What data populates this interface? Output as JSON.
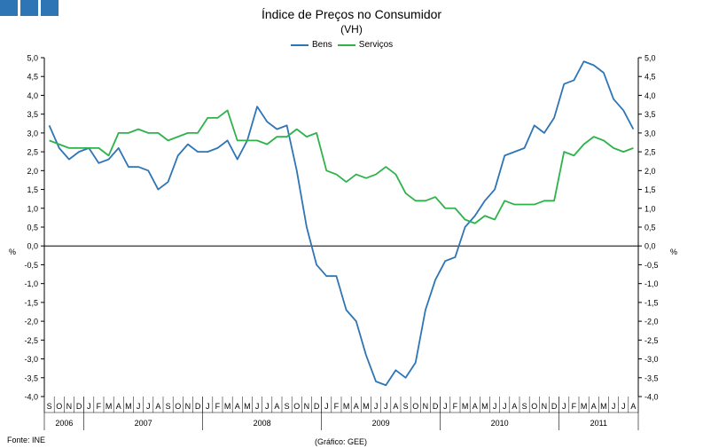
{
  "chart_data": {
    "type": "line",
    "title": "Índice de Preços no Consumidor",
    "subtitle": "(VH)",
    "ylabel_left": "%",
    "ylabel_right": "%",
    "ylim": [
      -4.0,
      5.0
    ],
    "yticks": [
      "5,0",
      "4,5",
      "4,0",
      "3,5",
      "3,0",
      "2,5",
      "2,0",
      "1,5",
      "1,0",
      "0,5",
      "0,0",
      "-0,5",
      "-1,0",
      "-1,5",
      "-2,0",
      "-2,5",
      "-3,0",
      "-3,5",
      "-4,0"
    ],
    "month_labels": [
      "S",
      "O",
      "N",
      "D",
      "J",
      "F",
      "M",
      "A",
      "M",
      "J",
      "J",
      "A",
      "S",
      "O",
      "N",
      "D",
      "J",
      "F",
      "M",
      "A",
      "M",
      "J",
      "J",
      "A",
      "S",
      "O",
      "N",
      "D",
      "J",
      "F",
      "M",
      "A",
      "M",
      "J",
      "J",
      "A",
      "S",
      "O",
      "N",
      "D",
      "J",
      "F",
      "M",
      "A",
      "M",
      "J",
      "J",
      "A",
      "S",
      "O",
      "N",
      "D",
      "J",
      "F",
      "M",
      "A",
      "M",
      "J",
      "J",
      "A"
    ],
    "years": [
      {
        "label": "2006",
        "start": 0,
        "end": 4
      },
      {
        "label": "2007",
        "start": 4,
        "end": 16
      },
      {
        "label": "2008",
        "start": 16,
        "end": 28
      },
      {
        "label": "2009",
        "start": 28,
        "end": 40
      },
      {
        "label": "2010",
        "start": 40,
        "end": 52
      },
      {
        "label": "2011",
        "start": 52,
        "end": 60
      }
    ],
    "legend_position": "top-center",
    "grid": false,
    "series": [
      {
        "name": "Bens",
        "color": "#2e75b6",
        "values": [
          3.2,
          2.6,
          2.3,
          2.5,
          2.6,
          2.2,
          2.3,
          2.6,
          2.1,
          2.1,
          2.0,
          1.5,
          1.7,
          2.4,
          2.7,
          2.5,
          2.5,
          2.6,
          2.8,
          2.3,
          2.8,
          3.7,
          3.3,
          3.1,
          3.2,
          2.0,
          0.5,
          -0.5,
          -0.8,
          -0.8,
          -1.7,
          -2.0,
          -2.9,
          -3.6,
          -3.7,
          -3.3,
          -3.5,
          -3.1,
          -1.7,
          -0.9,
          -0.4,
          -0.3,
          0.5,
          0.8,
          1.2,
          1.5,
          2.4,
          2.5,
          2.6,
          3.2,
          3.0,
          3.4,
          4.3,
          4.4,
          4.9,
          4.8,
          4.6,
          3.9,
          3.6,
          3.1
        ]
      },
      {
        "name": "Serviços",
        "color": "#2db34a",
        "values": [
          2.8,
          2.7,
          2.6,
          2.6,
          2.6,
          2.6,
          2.4,
          3.0,
          3.0,
          3.1,
          3.0,
          3.0,
          2.8,
          2.9,
          3.0,
          3.0,
          3.4,
          3.4,
          3.6,
          2.8,
          2.8,
          2.8,
          2.7,
          2.9,
          2.9,
          3.1,
          2.9,
          3.0,
          2.0,
          1.9,
          1.7,
          1.9,
          1.8,
          1.9,
          2.1,
          1.9,
          1.4,
          1.2,
          1.2,
          1.3,
          1.0,
          1.0,
          0.7,
          0.6,
          0.8,
          0.7,
          1.2,
          1.1,
          1.1,
          1.1,
          1.2,
          1.2,
          2.5,
          2.4,
          2.7,
          2.9,
          2.8,
          2.6,
          2.5,
          2.6
        ]
      }
    ]
  },
  "footer": {
    "source": "Fonte: INE",
    "credit": "(Gráfico: GEE)"
  },
  "brand_color": "#2e75b6"
}
